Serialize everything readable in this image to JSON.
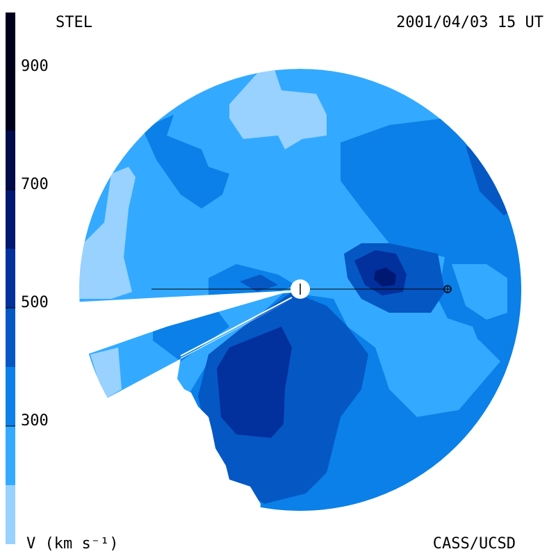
{
  "header": {
    "left_label": "STEL",
    "right_label": "2001/04/03 15 UT"
  },
  "footer": {
    "left_label": "V (km s⁻¹)",
    "right_label": "CASS/UCSD"
  },
  "color_scale": {
    "ticks": [
      "300",
      "500",
      "700",
      "900"
    ],
    "bands": [
      {
        "from": 200,
        "to": 300,
        "color": "#99d1ff"
      },
      {
        "from": 300,
        "to": 400,
        "color": "#33aaff"
      },
      {
        "from": 400,
        "to": 500,
        "color": "#0a80e8"
      },
      {
        "from": 500,
        "to": 600,
        "color": "#0557c4"
      },
      {
        "from": 600,
        "to": 700,
        "color": "#02309c"
      },
      {
        "from": 700,
        "to": 800,
        "color": "#011873"
      },
      {
        "from": 800,
        "to": 900,
        "color": "#000c4a"
      },
      {
        "from": 900,
        "to": 1000,
        "color": "#00001c"
      }
    ]
  },
  "map": {
    "background_color": "#33aaff",
    "sun_color": "#ffffff",
    "earth_symbol": "⊕"
  }
}
